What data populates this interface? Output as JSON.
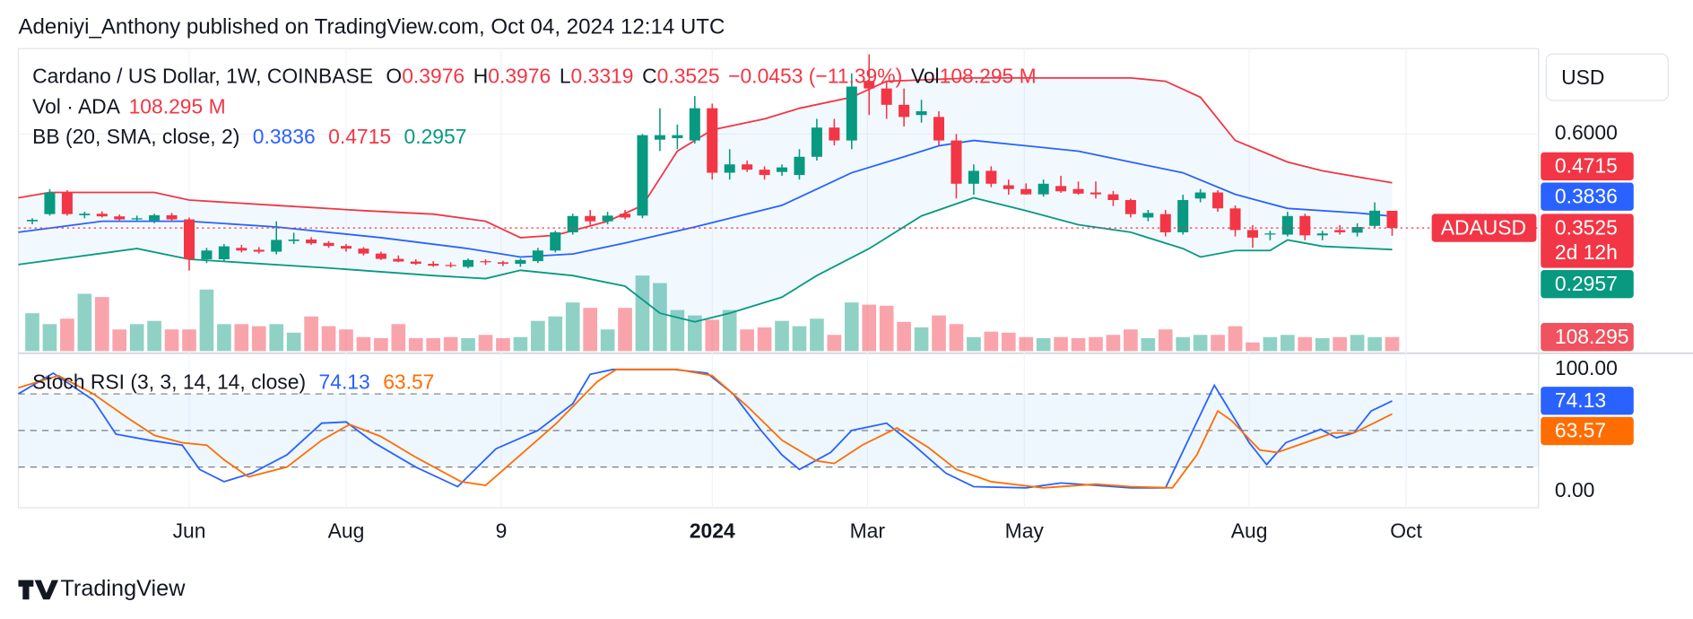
{
  "header": "Adeniyi_Anthony published on TradingView.com, Oct 04, 2024 12:14 UTC",
  "brand": "TradingView",
  "currency": "USD",
  "chart_data": [
    {
      "type": "candlestick",
      "title": "Cardano / US Dollar, 1W, COINBASE",
      "ohlc_labels": [
        "O",
        "H",
        "L",
        "C"
      ],
      "change": "−0.0453 (−11.39%)",
      "vol_short": "Vol",
      "symbol": "ADAUSD",
      "countdown": "2d 12h",
      "up_color": "#089981",
      "down_color": "#f23645",
      "open": [
        0.37,
        0.389,
        0.446,
        0.386,
        0.39,
        0.383,
        0.375,
        0.372,
        0.386,
        0.375,
        0.27,
        0.27,
        0.3,
        0.295,
        0.29,
        0.318,
        0.322,
        0.313,
        0.305,
        0.298,
        0.285,
        0.271,
        0.264,
        0.258,
        0.255,
        0.25,
        0.265,
        0.262,
        0.258,
        0.265,
        0.293,
        0.341,
        0.384,
        0.37,
        0.39,
        0.385,
        0.585,
        0.589,
        0.583,
        0.668,
        0.498,
        0.52,
        0.506,
        0.5,
        0.492,
        0.54,
        0.617,
        0.583,
        0.74,
        0.72,
        0.677,
        0.65,
        0.645,
        0.583,
        0.469,
        0.503,
        0.465,
        0.455,
        0.441,
        0.463,
        0.455,
        0.446,
        0.441,
        0.426,
        0.38,
        0.389,
        0.341,
        0.43,
        0.446,
        0.404,
        0.347,
        0.335,
        0.335,
        0.384,
        0.333,
        0.347,
        0.34,
        0.358,
        0.3976
      ],
      "high": [
        0.378,
        0.455,
        0.452,
        0.395,
        0.396,
        0.388,
        0.385,
        0.39,
        0.392,
        0.38,
        0.3,
        0.31,
        0.308,
        0.302,
        0.37,
        0.34,
        0.328,
        0.318,
        0.31,
        0.302,
        0.29,
        0.28,
        0.27,
        0.265,
        0.262,
        0.272,
        0.27,
        0.266,
        0.272,
        0.3,
        0.345,
        0.39,
        0.4,
        0.395,
        0.4,
        0.6,
        0.668,
        0.625,
        0.7,
        0.68,
        0.56,
        0.53,
        0.515,
        0.52,
        0.56,
        0.64,
        0.64,
        0.76,
        0.81,
        0.74,
        0.72,
        0.69,
        0.66,
        0.6,
        0.52,
        0.515,
        0.48,
        0.47,
        0.48,
        0.49,
        0.475,
        0.475,
        0.45,
        0.43,
        0.4,
        0.4,
        0.44,
        0.455,
        0.452,
        0.412,
        0.36,
        0.345,
        0.395,
        0.39,
        0.345,
        0.36,
        0.365,
        0.42,
        0.3976
      ],
      "low": [
        0.362,
        0.385,
        0.385,
        0.378,
        0.38,
        0.372,
        0.368,
        0.365,
        0.37,
        0.24,
        0.26,
        0.265,
        0.288,
        0.285,
        0.283,
        0.31,
        0.308,
        0.3,
        0.29,
        0.28,
        0.268,
        0.262,
        0.255,
        0.25,
        0.248,
        0.246,
        0.255,
        0.252,
        0.25,
        0.26,
        0.288,
        0.335,
        0.36,
        0.362,
        0.375,
        0.378,
        0.555,
        0.56,
        0.575,
        0.48,
        0.48,
        0.5,
        0.48,
        0.49,
        0.48,
        0.53,
        0.57,
        0.56,
        0.65,
        0.64,
        0.62,
        0.63,
        0.57,
        0.43,
        0.44,
        0.46,
        0.44,
        0.44,
        0.435,
        0.445,
        0.44,
        0.43,
        0.41,
        0.38,
        0.37,
        0.33,
        0.335,
        0.42,
        0.395,
        0.33,
        0.3,
        0.32,
        0.33,
        0.32,
        0.32,
        0.335,
        0.33,
        0.352,
        0.3319
      ],
      "close": [
        0.374,
        0.446,
        0.389,
        0.39,
        0.383,
        0.375,
        0.378,
        0.386,
        0.375,
        0.27,
        0.293,
        0.304,
        0.293,
        0.29,
        0.321,
        0.322,
        0.312,
        0.305,
        0.298,
        0.285,
        0.271,
        0.264,
        0.258,
        0.253,
        0.252,
        0.268,
        0.262,
        0.258,
        0.268,
        0.293,
        0.341,
        0.384,
        0.37,
        0.385,
        0.38,
        0.597,
        0.597,
        0.597,
        0.668,
        0.498,
        0.52,
        0.506,
        0.492,
        0.512,
        0.54,
        0.617,
        0.583,
        0.725,
        0.72,
        0.677,
        0.645,
        0.66,
        0.583,
        0.469,
        0.503,
        0.469,
        0.455,
        0.441,
        0.469,
        0.449,
        0.443,
        0.441,
        0.426,
        0.389,
        0.392,
        0.341,
        0.426,
        0.446,
        0.404,
        0.347,
        0.327,
        0.338,
        0.384,
        0.333,
        0.338,
        0.341,
        0.355,
        0.398,
        0.3525
      ],
      "ylim": [
        0.028,
        0.825
      ],
      "yticks": [
        {
          "value": 0.6,
          "label": "0.6000"
        }
      ],
      "xlim": [
        -0.8,
        86.4
      ],
      "xticks": [
        {
          "value": 9.0,
          "label": "Jun"
        },
        {
          "value": 18.0,
          "label": "Aug"
        },
        {
          "value": 26.9,
          "label": "9"
        },
        {
          "value": 39.0,
          "label": "2024"
        },
        {
          "value": 47.9,
          "label": "Mar"
        },
        {
          "value": 56.9,
          "label": "May"
        },
        {
          "value": 69.8,
          "label": "Aug"
        },
        {
          "value": 78.8,
          "label": "Oct"
        }
      ],
      "grid": true
    },
    {
      "type": "volume",
      "title": "Vol · ADA",
      "values": [
        292,
        208,
        250,
        442,
        417,
        167,
        208,
        233,
        167,
        167,
        475,
        208,
        208,
        192,
        208,
        142,
        267,
        192,
        167,
        108,
        100,
        208,
        100,
        100,
        108,
        100,
        125,
        100,
        108,
        233,
        267,
        375,
        333,
        167,
        333,
        583,
        525,
        317,
        275,
        242,
        317,
        167,
        183,
        233,
        192,
        250,
        125,
        375,
        358,
        350,
        225,
        183,
        275,
        208,
        108,
        150,
        142,
        108,
        100,
        108,
        100,
        108,
        125,
        167,
        100,
        167,
        108,
        125,
        125,
        192,
        67,
        108,
        125,
        108,
        100,
        108,
        125,
        108,
        108.295
      ],
      "value_labels": {
        "78": "108.295 M"
      },
      "ylim": [
        0,
        2333
      ]
    },
    {
      "type": "bollinger",
      "title": "BB (20, SMA, close, 2)",
      "series": [
        {
          "color": "#2962ff",
          "x": [
            -0.8,
            4,
            9,
            14,
            20,
            25,
            28,
            31,
            34,
            38,
            43,
            47,
            50,
            52,
            54,
            60,
            63,
            66,
            69,
            72,
            76,
            78
          ],
          "values": [
            0.341,
            0.37,
            0.37,
            0.355,
            0.327,
            0.298,
            0.276,
            0.284,
            0.313,
            0.355,
            0.412,
            0.498,
            0.54,
            0.569,
            0.583,
            0.555,
            0.526,
            0.498,
            0.441,
            0.404,
            0.392,
            0.3836
          ]
        },
        {
          "color": "#f23645",
          "x": [
            -0.8,
            1,
            7,
            9,
            14,
            19,
            23,
            26,
            28,
            30,
            33,
            35,
            37,
            39,
            42,
            44,
            47,
            49,
            54,
            63,
            65,
            67,
            69,
            72,
            74,
            78
          ],
          "values": [
            0.432,
            0.446,
            0.446,
            0.426,
            0.412,
            0.398,
            0.389,
            0.37,
            0.327,
            0.333,
            0.37,
            0.412,
            0.555,
            0.611,
            0.64,
            0.668,
            0.697,
            0.739,
            0.748,
            0.748,
            0.739,
            0.697,
            0.583,
            0.526,
            0.503,
            0.4715
          ]
        },
        {
          "color": "#089981",
          "x": [
            -0.8,
            6,
            9,
            17,
            23,
            26,
            28,
            31,
            34,
            36,
            38,
            40,
            43,
            45,
            48,
            51,
            54,
            57,
            60,
            63,
            66,
            67,
            69,
            71,
            72,
            74,
            78
          ],
          "values": [
            0.256,
            0.298,
            0.27,
            0.247,
            0.227,
            0.219,
            0.241,
            0.227,
            0.199,
            0.128,
            0.105,
            0.128,
            0.17,
            0.227,
            0.298,
            0.384,
            0.432,
            0.398,
            0.361,
            0.341,
            0.298,
            0.276,
            0.293,
            0.293,
            0.321,
            0.304,
            0.2957
          ]
        }
      ]
    },
    {
      "type": "stoch_rsi",
      "title": "Stoch RSI (3, 3, 14, 14, close)",
      "series": [
        {
          "color": "#2962ff",
          "x": [
            -0.8,
            1.2,
            3.5,
            4.8,
            6.7,
            8.6,
            9.6,
            11,
            12.6,
            14.6,
            16.6,
            18,
            19.6,
            22,
            24.4,
            26.6,
            29,
            31,
            32,
            33.3,
            36.8,
            38.7,
            40.2,
            41.8,
            43,
            44,
            45.8,
            47,
            49,
            50.4,
            52.4,
            54,
            57,
            59,
            61,
            63,
            65,
            66.8,
            67.8,
            69.8,
            70.8,
            71.9,
            73.9,
            74.8,
            75.8,
            76.8,
            78
          ],
          "values": [
            80,
            97,
            75,
            47,
            42,
            38,
            18,
            8,
            15,
            30,
            56,
            57,
            40,
            20,
            4,
            35,
            50,
            72,
            96,
            100,
            100,
            97,
            80,
            50,
            30,
            18,
            32,
            50,
            56,
            40,
            15,
            4,
            3,
            7,
            5,
            3,
            3,
            57,
            87,
            40,
            22,
            40,
            51,
            44,
            48,
            66,
            74.13
          ]
        },
        {
          "color": "#ff6d00",
          "x": [
            -0.8,
            1.5,
            3.5,
            5.5,
            7,
            8.6,
            10,
            11,
            12.4,
            14.6,
            16.6,
            18.2,
            20,
            22,
            24.6,
            26,
            28,
            30,
            32.4,
            33.5,
            37,
            39,
            41,
            43,
            45,
            46,
            47.6,
            49.6,
            51.4,
            53,
            55,
            58,
            61,
            63,
            65.4,
            66.8,
            68,
            68.8,
            70.4,
            71.4,
            73,
            74.6,
            75.8,
            76.8,
            78
          ],
          "values": [
            85,
            95,
            80,
            60,
            46,
            40,
            38,
            26,
            12,
            20,
            42,
            55,
            45,
            28,
            8,
            5,
            30,
            55,
            90,
            100,
            100,
            95,
            70,
            42,
            25,
            23,
            38,
            52,
            36,
            18,
            8,
            3,
            6,
            4,
            3,
            30,
            66,
            58,
            34,
            32,
            40,
            48,
            48,
            55,
            63.57
          ]
        }
      ],
      "levels": [
        80,
        50,
        20
      ],
      "ylim": [
        -13.3,
        113.3
      ],
      "yticks": [
        {
          "value": 100,
          "label": "100.00"
        },
        {
          "value": 0,
          "label": "0.00"
        }
      ]
    }
  ]
}
